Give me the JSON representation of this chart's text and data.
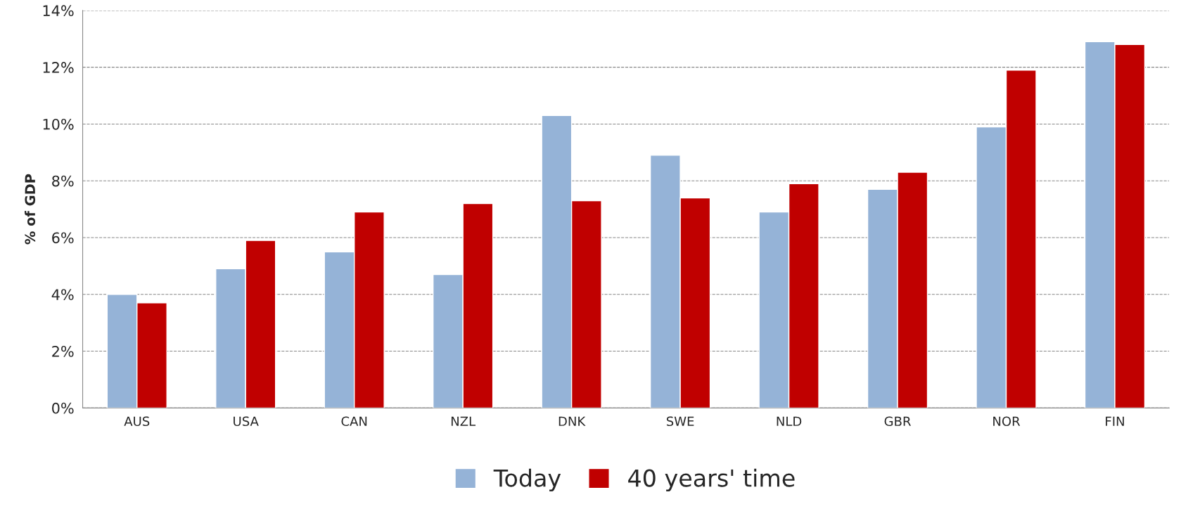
{
  "chart_data": {
    "type": "bar",
    "ylabel": "% of GDP",
    "categories": [
      "AUS",
      "USA",
      "CAN",
      "NZL",
      "DNK",
      "SWE",
      "NLD",
      "GBR",
      "NOR",
      "FIN"
    ],
    "series": [
      {
        "name": "Today",
        "color": "#95b3d7",
        "values": [
          4.0,
          4.9,
          5.5,
          4.7,
          10.3,
          8.9,
          6.9,
          7.7,
          9.9,
          12.9
        ]
      },
      {
        "name": "40 years' time",
        "color": "#c00000",
        "values": [
          3.7,
          5.9,
          6.9,
          7.2,
          7.3,
          7.4,
          7.9,
          8.3,
          11.9,
          12.8
        ]
      }
    ],
    "ylim": [
      0,
      14
    ],
    "yticks": [
      {
        "value": 0,
        "label": "0%"
      },
      {
        "value": 2,
        "label": "2%"
      },
      {
        "value": 4,
        "label": "4%"
      },
      {
        "value": 6,
        "label": "6%"
      },
      {
        "value": 8,
        "label": "8%"
      },
      {
        "value": 10,
        "label": "10%"
      },
      {
        "value": 12,
        "label": "12%"
      },
      {
        "value": 14,
        "label": "14%"
      }
    ],
    "grid": "y",
    "legend": "bottom"
  }
}
